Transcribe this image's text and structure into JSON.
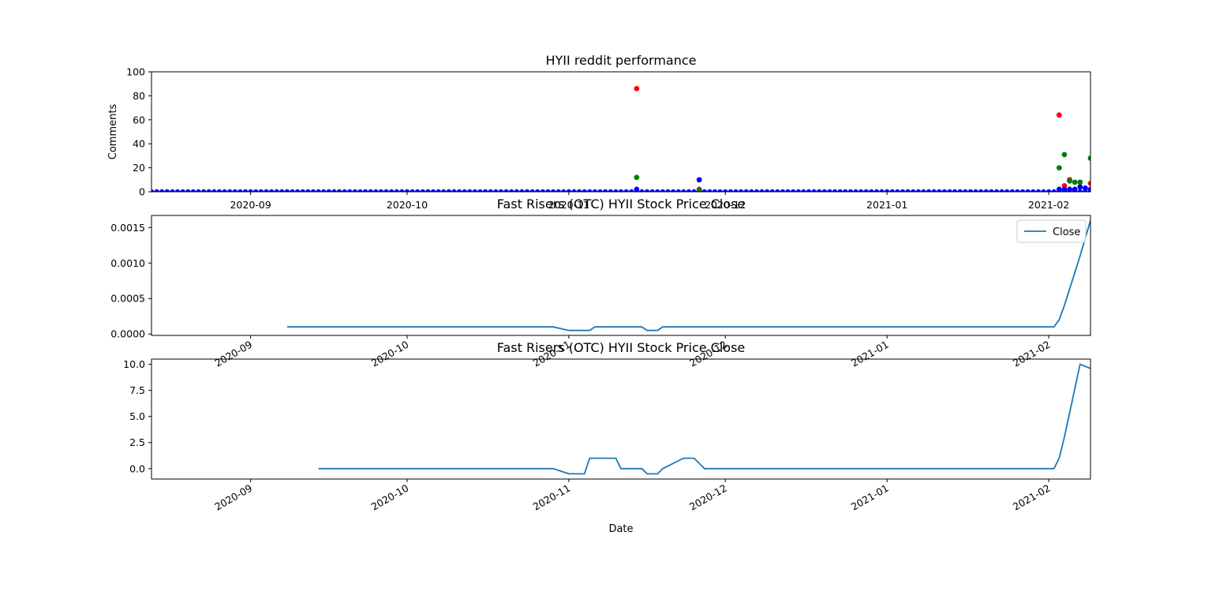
{
  "chart_data": [
    {
      "type": "scatter",
      "title": "HYII reddit performance",
      "xlabel": "",
      "ylabel": "Comments",
      "xlim": [
        "2020-08-13",
        "2021-02-09"
      ],
      "ylim": [
        0,
        100
      ],
      "xticks": [
        "2020-09",
        "2020-10",
        "2020-11",
        "2020-12",
        "2021-01",
        "2021-02"
      ],
      "yticks": [
        0,
        20,
        40,
        60,
        80,
        100
      ],
      "colors": {
        "red": "#ff0000",
        "green": "#008000",
        "blue": "#0000ff"
      },
      "baseline": {
        "start": "2020-08-13",
        "end": "2021-02-09",
        "value": 0
      },
      "series": [
        {
          "color": "red",
          "points": [
            [
              "2020-11-14",
              86
            ],
            [
              "2020-11-26",
              2
            ],
            [
              "2021-02-03",
              64
            ],
            [
              "2021-02-04",
              5
            ],
            [
              "2021-02-05",
              10
            ],
            [
              "2021-02-09",
              7
            ]
          ]
        },
        {
          "color": "green",
          "points": [
            [
              "2020-11-14",
              12
            ],
            [
              "2020-11-26",
              1
            ],
            [
              "2021-02-03",
              20
            ],
            [
              "2021-02-04",
              31
            ],
            [
              "2021-02-05",
              9
            ],
            [
              "2021-02-06",
              8
            ],
            [
              "2021-02-07",
              8
            ],
            [
              "2021-02-09",
              28
            ]
          ]
        },
        {
          "color": "blue",
          "points": [
            [
              "2020-11-14",
              2
            ],
            [
              "2020-11-26",
              10
            ],
            [
              "2021-02-03",
              2
            ],
            [
              "2021-02-04",
              2
            ],
            [
              "2021-02-05",
              2
            ],
            [
              "2021-02-06",
              2
            ],
            [
              "2021-02-07",
              4
            ],
            [
              "2021-02-08",
              3
            ],
            [
              "2021-02-09",
              2
            ]
          ]
        }
      ]
    },
    {
      "type": "line",
      "title": "Fast Risers (OTC) HYII Stock Price Close",
      "xlabel": "",
      "ylabel": "",
      "xlim": [
        "2020-08-13",
        "2021-02-09"
      ],
      "ylim": [
        -2e-05,
        0.00167
      ],
      "xticks": [
        "2020-09",
        "2020-10",
        "2020-11",
        "2020-12",
        "2021-01",
        "2021-02"
      ],
      "yticks": [
        "0.0000",
        "0.0005",
        "0.0010",
        "0.0015"
      ],
      "ytick_values": [
        0,
        0.0005,
        0.001,
        0.0015
      ],
      "legend": {
        "label": "Close",
        "position": "upper right"
      },
      "line_color": "#1f77b4",
      "series": [
        {
          "name": "Close",
          "points": [
            [
              "2020-09-08",
              0.0001
            ],
            [
              "2020-10-29",
              0.0001
            ],
            [
              "2020-11-01",
              5e-05
            ],
            [
              "2020-11-05",
              5e-05
            ],
            [
              "2020-11-06",
              0.0001
            ],
            [
              "2020-11-15",
              0.0001
            ],
            [
              "2020-11-16",
              5e-05
            ],
            [
              "2020-11-18",
              5e-05
            ],
            [
              "2020-11-19",
              0.0001
            ],
            [
              "2021-02-02",
              0.0001
            ],
            [
              "2021-02-03",
              0.0002
            ],
            [
              "2021-02-04",
              0.0004
            ],
            [
              "2021-02-07",
              0.0011
            ],
            [
              "2021-02-09",
              0.0016
            ]
          ]
        }
      ]
    },
    {
      "type": "line",
      "title": "Fast Risers (OTC) HYII Stock Price Close",
      "xlabel": "Date",
      "ylabel": "",
      "xlim": [
        "2020-08-13",
        "2021-02-09"
      ],
      "ylim": [
        -1.0,
        10.5
      ],
      "xticks": [
        "2020-09",
        "2020-10",
        "2020-11",
        "2020-12",
        "2021-01",
        "2021-02"
      ],
      "yticks": [
        "0.0",
        "2.5",
        "5.0",
        "7.5",
        "10.0"
      ],
      "ytick_values": [
        0,
        2.5,
        5,
        7.5,
        10
      ],
      "line_color": "#1f77b4",
      "series": [
        {
          "points": [
            [
              "2020-09-14",
              0
            ],
            [
              "2020-10-29",
              0
            ],
            [
              "2020-11-01",
              -0.5
            ],
            [
              "2020-11-04",
              -0.5
            ],
            [
              "2020-11-05",
              1
            ],
            [
              "2020-11-10",
              1
            ],
            [
              "2020-11-11",
              0
            ],
            [
              "2020-11-15",
              0
            ],
            [
              "2020-11-16",
              -0.5
            ],
            [
              "2020-11-18",
              -0.5
            ],
            [
              "2020-11-19",
              0
            ],
            [
              "2020-11-23",
              1
            ],
            [
              "2020-11-25",
              1
            ],
            [
              "2020-11-27",
              0
            ],
            [
              "2021-02-02",
              0
            ],
            [
              "2021-02-03",
              1
            ],
            [
              "2021-02-04",
              3
            ],
            [
              "2021-02-07",
              10
            ],
            [
              "2021-02-09",
              9.6
            ]
          ]
        }
      ]
    }
  ]
}
